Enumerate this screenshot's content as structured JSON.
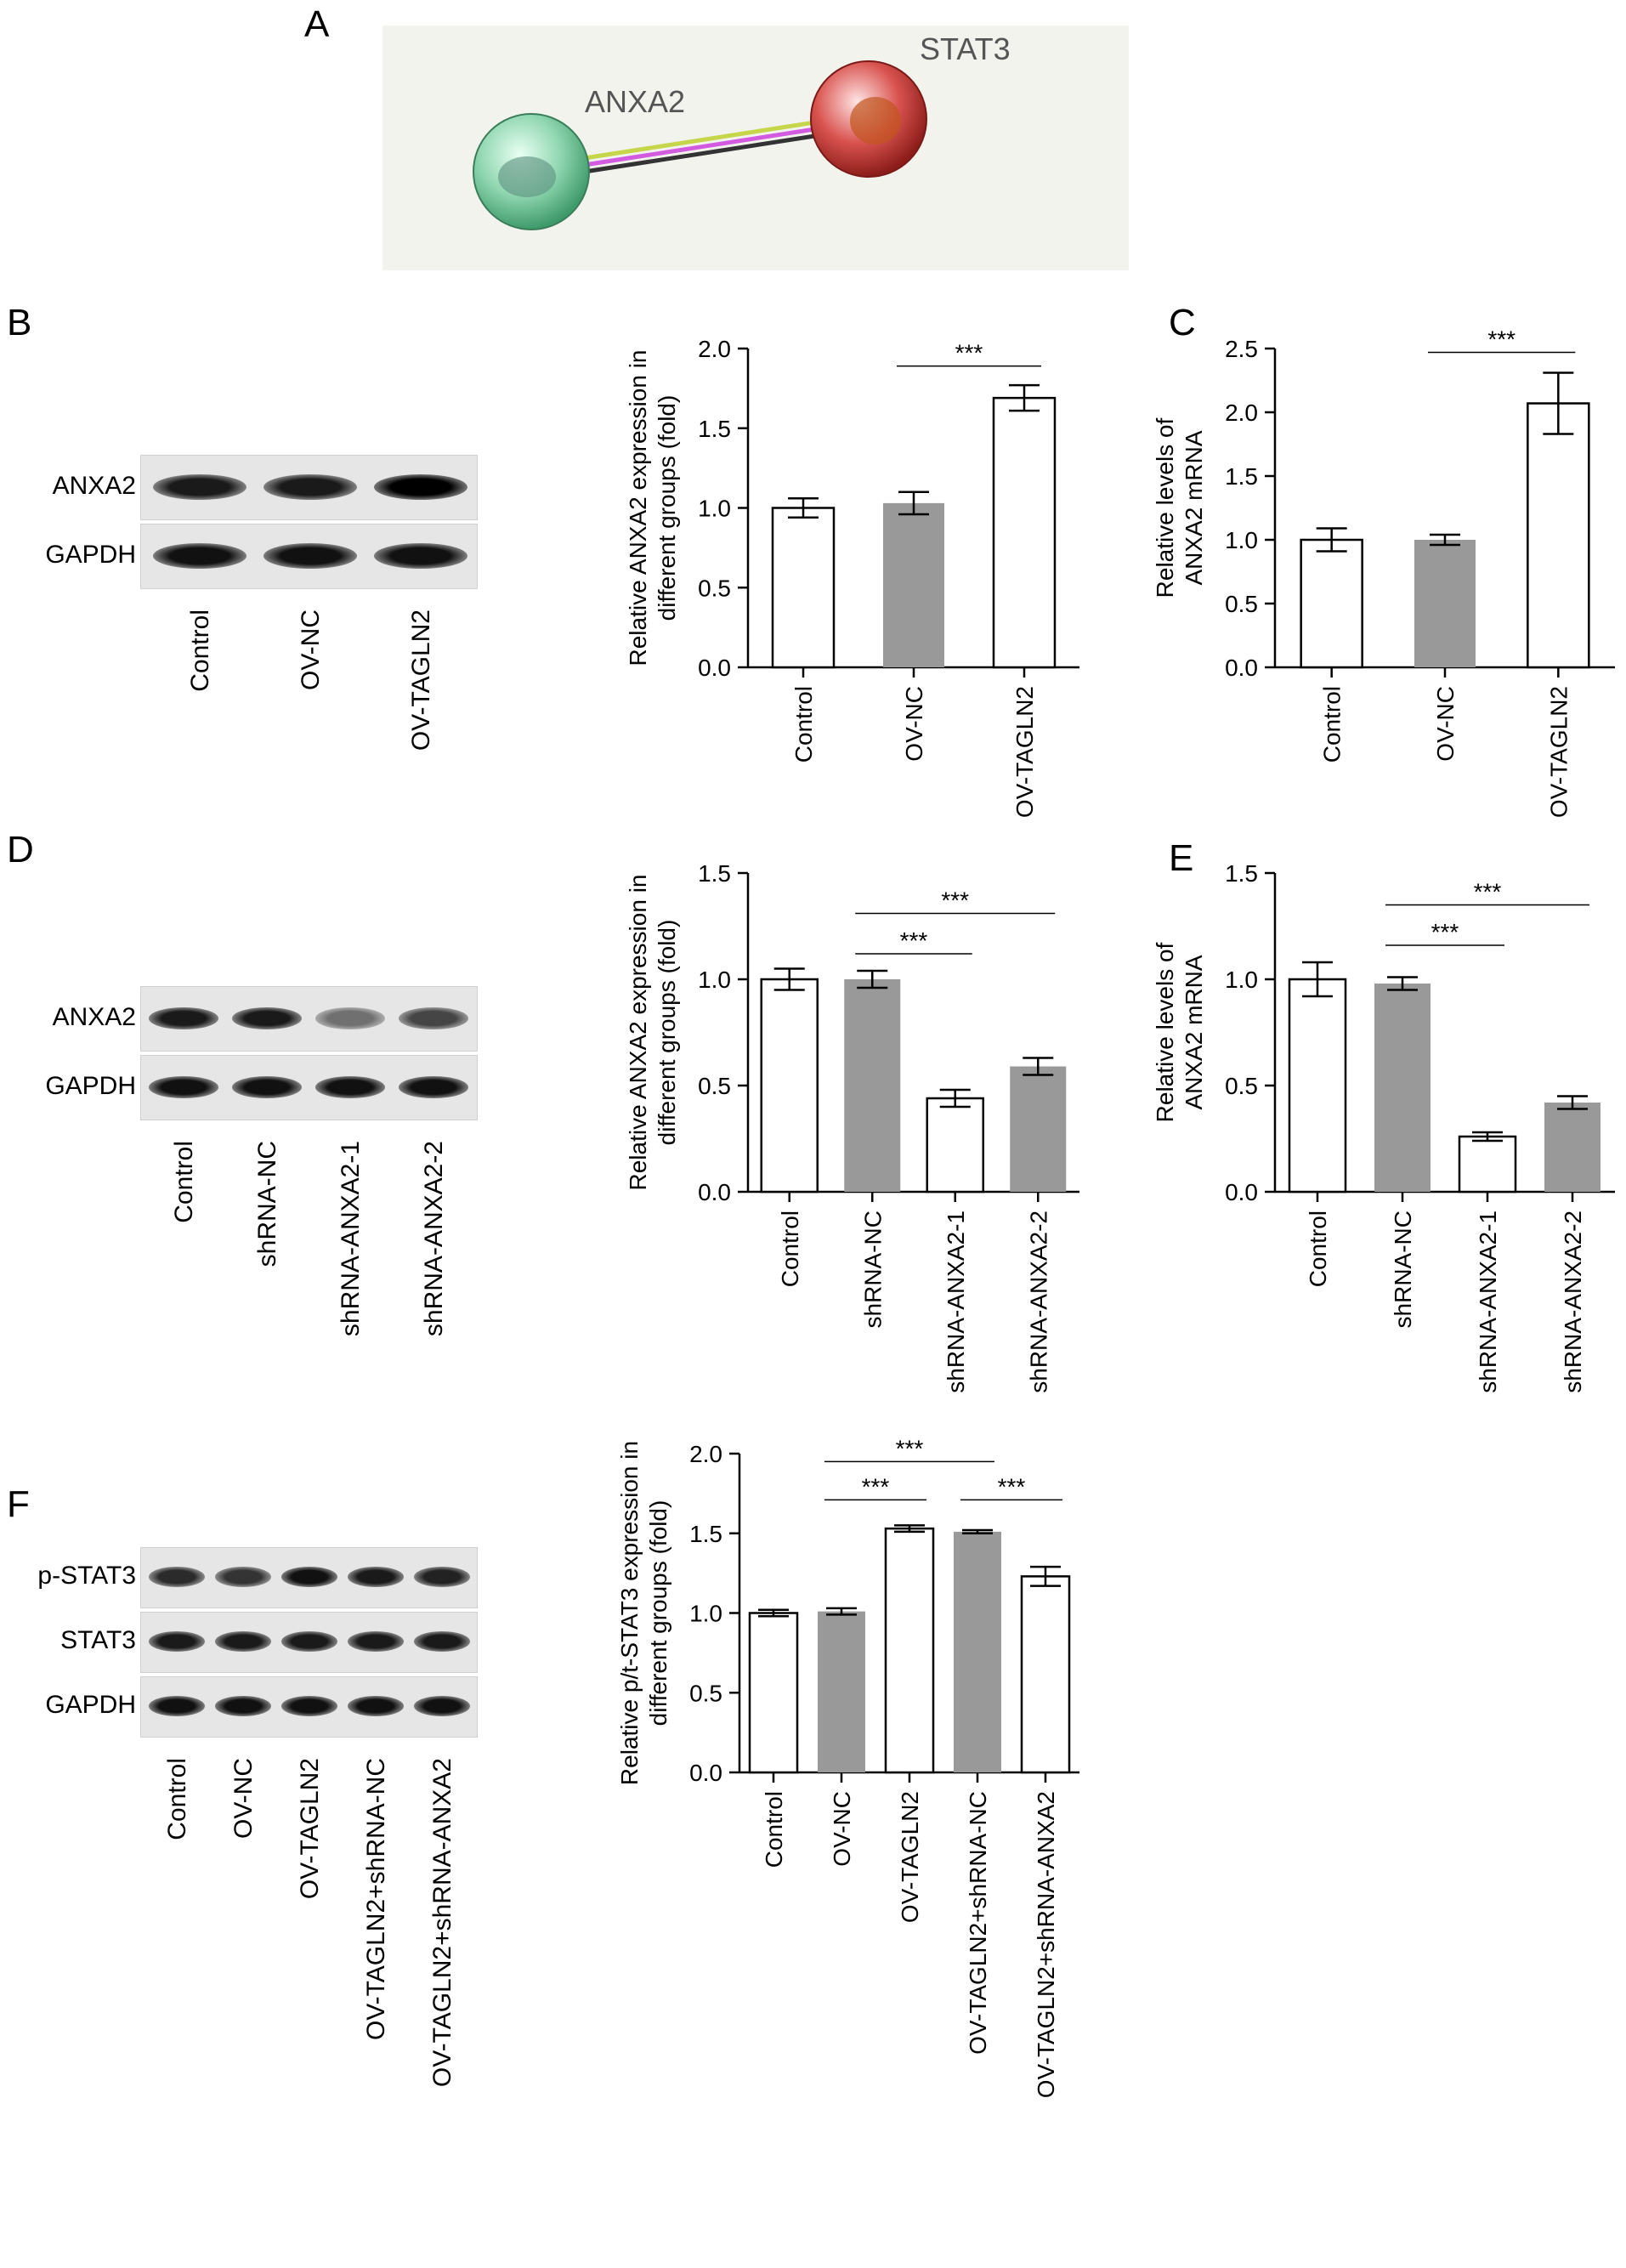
{
  "panels": {
    "A": {
      "letter": "A",
      "nodes": [
        "ANXA2",
        "STAT3"
      ]
    },
    "B": {
      "letter": "B"
    },
    "C": {
      "letter": "C"
    },
    "D": {
      "letter": "D"
    },
    "E": {
      "letter": "E"
    },
    "F": {
      "letter": "F"
    }
  },
  "blots": {
    "B": {
      "rows": [
        "ANXA2",
        "GAPDH"
      ],
      "lanes": [
        "Control",
        "OV-NC",
        "OV-TAGLN2"
      ],
      "intensity": [
        [
          0.85,
          0.85,
          1.0
        ],
        [
          0.9,
          0.9,
          0.9
        ]
      ]
    },
    "D": {
      "rows": [
        "ANXA2",
        "GAPDH"
      ],
      "lanes": [
        "Control",
        "shRNA-NC",
        "shRNA-ANXA2-1",
        "shRNA-ANXA2-2"
      ],
      "intensity": [
        [
          0.85,
          0.85,
          0.35,
          0.6
        ],
        [
          0.9,
          0.9,
          0.9,
          0.9
        ]
      ]
    },
    "F": {
      "rows": [
        "p-STAT3",
        "STAT3",
        "GAPDH"
      ],
      "lanes": [
        "Control",
        "OV-NC",
        "OV-TAGLN2",
        "OV-TAGLN2+shRNA-NC",
        "OV-TAGLN2+shRNA-ANXA2"
      ],
      "intensity": [
        [
          0.75,
          0.7,
          0.9,
          0.85,
          0.8
        ],
        [
          0.85,
          0.85,
          0.85,
          0.85,
          0.85
        ],
        [
          0.9,
          0.9,
          0.9,
          0.9,
          0.9
        ]
      ]
    }
  },
  "colors": {
    "white_bar": "#ffffff",
    "gray_bar": "#999999",
    "anxa2_node": "#8fd6b0",
    "stat3_node": "#d9534f"
  },
  "chart_data": [
    {
      "id": "B",
      "type": "bar",
      "categories": [
        "Control",
        "OV-NC",
        "OV-TAGLN2"
      ],
      "values": [
        1.0,
        1.03,
        1.69
      ],
      "errors": [
        0.06,
        0.07,
        0.08
      ],
      "fills": [
        "white",
        "gray",
        "white"
      ],
      "ylabel": [
        "Relative ANXA2 expression in",
        "different groups (fold)"
      ],
      "ylim": [
        0,
        2.0
      ],
      "yticks": [
        "0.0",
        "0.5",
        "1.0",
        "1.5",
        "2.0"
      ],
      "significance": [
        {
          "from": 1,
          "to": 2,
          "y": 1.89,
          "label": "***"
        }
      ]
    },
    {
      "id": "C",
      "type": "bar",
      "categories": [
        "Control",
        "OV-NC",
        "OV-TAGLN2"
      ],
      "values": [
        1.0,
        1.0,
        2.07
      ],
      "errors": [
        0.09,
        0.04,
        0.24
      ],
      "fills": [
        "white",
        "gray",
        "white"
      ],
      "ylabel": [
        "Relative levels of",
        "ANXA2 mRNA"
      ],
      "ylim": [
        0,
        2.5
      ],
      "yticks": [
        "0.0",
        "0.5",
        "1.0",
        "1.5",
        "2.0",
        "2.5"
      ],
      "significance": [
        {
          "from": 1,
          "to": 2,
          "y": 2.47,
          "label": "***"
        }
      ]
    },
    {
      "id": "D",
      "type": "bar",
      "categories": [
        "Control",
        "shRNA-NC",
        "shRNA-ANXA2-1",
        "shRNA-ANXA2-2"
      ],
      "values": [
        1.0,
        1.0,
        0.44,
        0.59
      ],
      "errors": [
        0.05,
        0.04,
        0.04,
        0.04
      ],
      "fills": [
        "white",
        "gray",
        "white",
        "gray"
      ],
      "ylabel": [
        "Relative ANXA2 expression in",
        "different groups (fold)"
      ],
      "ylim": [
        0,
        1.5
      ],
      "yticks": [
        "0.0",
        "0.5",
        "1.0",
        "1.5"
      ],
      "significance": [
        {
          "from": 1,
          "to": 2,
          "y": 1.12,
          "label": "***"
        },
        {
          "from": 1,
          "to": 3,
          "y": 1.31,
          "label": "***"
        }
      ]
    },
    {
      "id": "E",
      "type": "bar",
      "categories": [
        "Control",
        "shRNA-NC",
        "shRNA-ANXA2-1",
        "shRNA-ANXA2-2"
      ],
      "values": [
        1.0,
        0.98,
        0.26,
        0.42
      ],
      "errors": [
        0.08,
        0.03,
        0.02,
        0.03
      ],
      "fills": [
        "white",
        "gray",
        "white",
        "gray"
      ],
      "ylabel": [
        "Relative levels of",
        "ANXA2 mRNA"
      ],
      "ylim": [
        0,
        1.5
      ],
      "yticks": [
        "0.0",
        "0.5",
        "1.0",
        "1.5"
      ],
      "significance": [
        {
          "from": 1,
          "to": 2,
          "y": 1.16,
          "label": "***"
        },
        {
          "from": 1,
          "to": 3,
          "y": 1.35,
          "label": "***"
        }
      ]
    },
    {
      "id": "F",
      "type": "bar",
      "categories": [
        "Control",
        "OV-NC",
        "OV-TAGLN2",
        "OV-TAGLN2+shRNA-NC",
        "OV-TAGLN2+shRNA-ANXA2"
      ],
      "values": [
        1.0,
        1.01,
        1.53,
        1.51,
        1.23
      ],
      "errors": [
        0.02,
        0.02,
        0.02,
        0.01,
        0.06
      ],
      "fills": [
        "white",
        "gray",
        "white",
        "gray",
        "white"
      ],
      "ylabel": [
        "Relative p/t-STAT3 expression in",
        "different groups (fold)"
      ],
      "ylim": [
        0,
        2.0
      ],
      "yticks": [
        "0.0",
        "0.5",
        "1.0",
        "1.5",
        "2.0"
      ],
      "significance": [
        {
          "from": 1,
          "to": 2,
          "y": 1.71,
          "label": "***"
        },
        {
          "from": 1,
          "to": 3,
          "y": 1.95,
          "label": "***"
        },
        {
          "from": 3,
          "to": 4,
          "y": 1.71,
          "label": "***"
        }
      ]
    }
  ]
}
